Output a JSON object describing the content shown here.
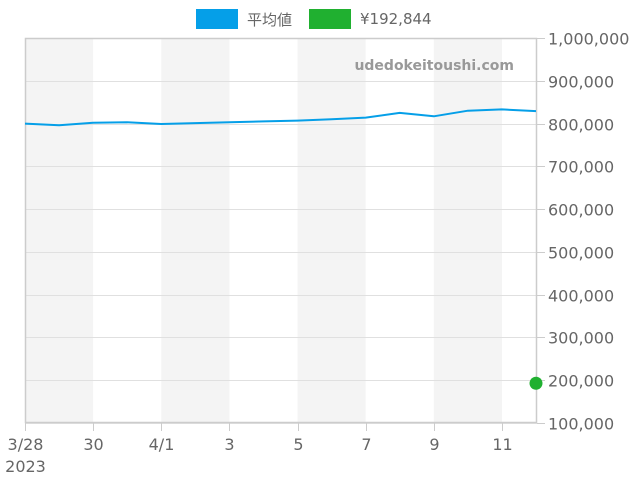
{
  "legend": {
    "items": [
      {
        "label": "平均値",
        "color": "#059FE8"
      },
      {
        "label": "¥192,844",
        "color": "#20B030"
      }
    ]
  },
  "watermark": "udedokeitoushi.com",
  "chart_data": {
    "type": "line",
    "title": "",
    "xlabel": "",
    "ylabel": "",
    "x": [
      "2023-03-28",
      "2023-03-29",
      "2023-03-30",
      "2023-03-31",
      "2023-04-01",
      "2023-04-02",
      "2023-04-03",
      "2023-04-04",
      "2023-04-05",
      "2023-04-06",
      "2023-04-07",
      "2023-04-08",
      "2023-04-09",
      "2023-04-10",
      "2023-04-11",
      "2023-04-12"
    ],
    "series": [
      {
        "name": "平均値",
        "color": "#059FE8",
        "type": "line",
        "values": [
          800000,
          796000,
          802000,
          803000,
          799000,
          801000,
          803000,
          805000,
          807000,
          810000,
          814000,
          825000,
          817000,
          830000,
          833000,
          829000
        ]
      },
      {
        "name": "¥192,844",
        "color": "#20B030",
        "type": "scatter",
        "points": [
          {
            "x": "2023-04-12",
            "y": 192844
          }
        ]
      }
    ],
    "ylim": [
      100000,
      1000000
    ],
    "y_ticks": [
      "1,000,000",
      "900,000",
      "800,000",
      "700,000",
      "600,000",
      "500,000",
      "400,000",
      "300,000",
      "200,000",
      "100,000"
    ],
    "y_tick_values": [
      1000000,
      900000,
      800000,
      700000,
      600000,
      500000,
      400000,
      300000,
      200000,
      100000
    ],
    "x_ticks": [
      {
        "label": "3/28",
        "sublabel": "2023",
        "index": 0
      },
      {
        "label": "30",
        "index": 2
      },
      {
        "label": "4/1",
        "index": 4
      },
      {
        "label": "3",
        "index": 6
      },
      {
        "label": "5",
        "index": 8
      },
      {
        "label": "7",
        "index": 10
      },
      {
        "label": "9",
        "index": 12
      },
      {
        "label": "11",
        "index": 14
      }
    ],
    "shaded_bands": [
      [
        0,
        2
      ],
      [
        4,
        6
      ],
      [
        8,
        10
      ],
      [
        12,
        14
      ]
    ],
    "y_axis_position": "right",
    "grid": true,
    "legend_position": "top"
  }
}
